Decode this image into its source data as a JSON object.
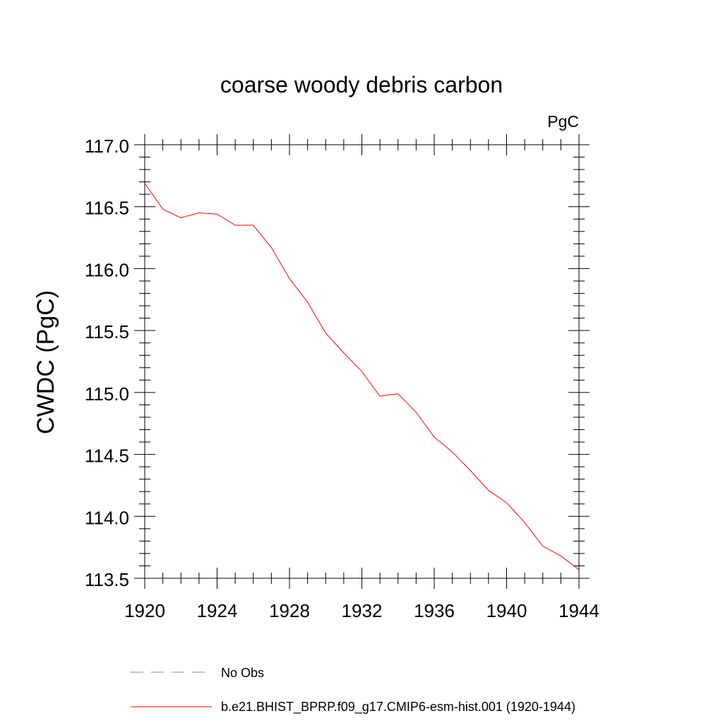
{
  "chart_data": {
    "type": "line",
    "title": "coarse woody debris carbon",
    "units": "PgC",
    "ylabel": "CWDC  (PgC)",
    "xlabel": "",
    "xlim": [
      1920,
      1944
    ],
    "ylim": [
      113.5,
      117.0
    ],
    "x_ticks": [
      1920,
      1924,
      1928,
      1932,
      1936,
      1940,
      1944
    ],
    "y_ticks": [
      "113.5",
      "114.0",
      "114.5",
      "115.0",
      "115.5",
      "116.0",
      "116.5",
      "117.0"
    ],
    "grid": false,
    "legend_position": "bottom",
    "colors": {
      "model": "#ff0000",
      "obs": "#8a7fc0"
    },
    "series": [
      {
        "name": "b.e21.BHIST_BPRP.f09_g17.CMIP6-esm-hist.001 (1920-1944)",
        "x": [
          1920,
          1921,
          1922,
          1923,
          1924,
          1925,
          1926,
          1927,
          1928,
          1929,
          1930,
          1931,
          1932,
          1933,
          1934,
          1935,
          1936,
          1937,
          1938,
          1939,
          1940,
          1941,
          1942,
          1943,
          1944
        ],
        "values": [
          116.69,
          116.48,
          116.41,
          116.45,
          116.44,
          116.35,
          116.35,
          116.17,
          115.92,
          115.73,
          115.48,
          115.32,
          115.17,
          114.97,
          114.99,
          114.84,
          114.64,
          114.52,
          114.37,
          114.21,
          114.11,
          113.95,
          113.76,
          113.68,
          113.57
        ]
      }
    ],
    "legend": [
      {
        "label": "No Obs",
        "style": "dashed",
        "color": "#8a7fc0"
      },
      {
        "label": "b.e21.BHIST_BPRP.f09_g17.CMIP6-esm-hist.001 (1920-1944)",
        "style": "solid",
        "color": "#ff0000"
      }
    ]
  }
}
